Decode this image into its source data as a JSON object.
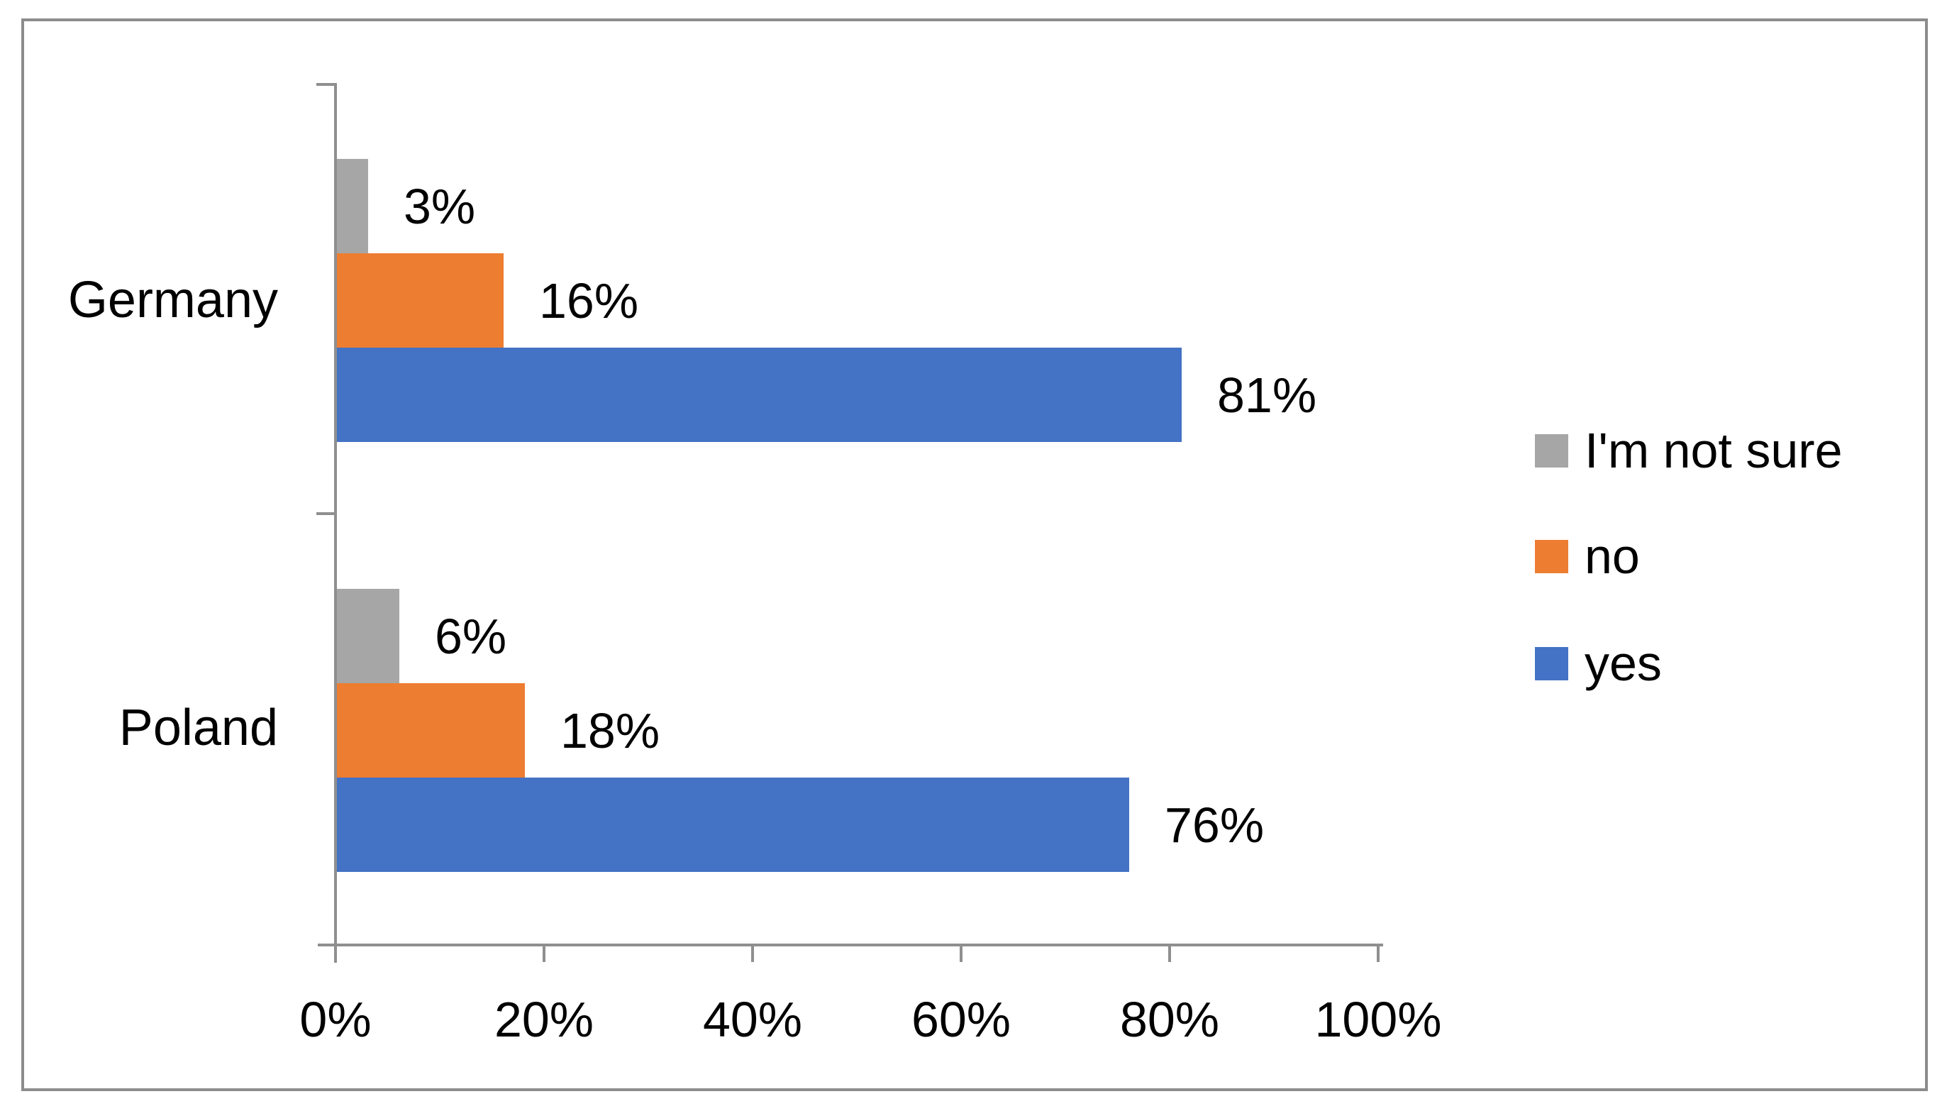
{
  "chart_data": {
    "type": "bar",
    "orientation": "horizontal",
    "title": "",
    "categories": [
      "Germany",
      "Poland"
    ],
    "series": [
      {
        "name": "I'm not sure",
        "color": "#A6A6A6",
        "values_pct": [
          3,
          6
        ],
        "labels": [
          "3%",
          "6%"
        ]
      },
      {
        "name": "no",
        "color": "#ED7D31",
        "values_pct": [
          16,
          18
        ],
        "labels": [
          "16%",
          "18%"
        ]
      },
      {
        "name": "yes",
        "color": "#4472C4",
        "values_pct": [
          81,
          76
        ],
        "labels": [
          "81%",
          "76%"
        ]
      }
    ],
    "x_axis": {
      "min": 0,
      "max": 100,
      "tick_values": [
        0,
        20,
        40,
        60,
        80,
        100
      ],
      "tick_labels": [
        "0%",
        "20%",
        "40%",
        "60%",
        "80%",
        "100%"
      ]
    },
    "legend": {
      "position": "right",
      "items": [
        "I'm not sure",
        "no",
        "yes"
      ]
    },
    "grid": false,
    "colors": {
      "axis": "#8F8F8F",
      "frame_border": "#8C8C8C",
      "text": "#000000",
      "background": "#FFFFFF"
    }
  }
}
